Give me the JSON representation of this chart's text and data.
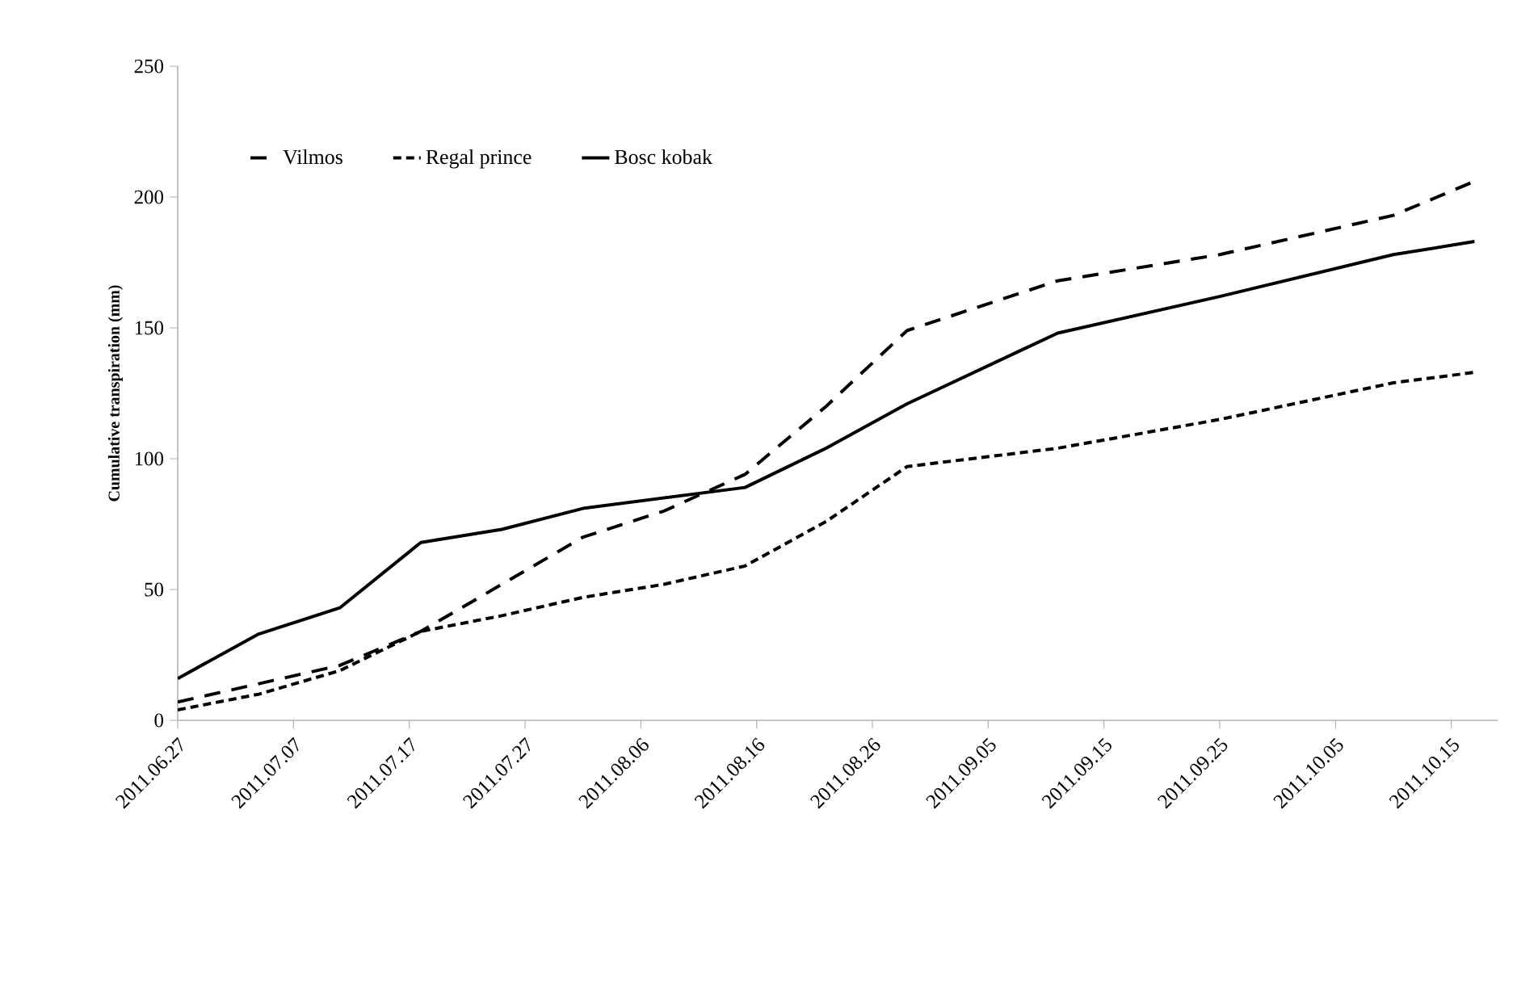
{
  "chart_data": {
    "type": "line",
    "ylabel": "Cumulative transpiration (mm)",
    "x": [
      "2011-06-27",
      "2011-07-04",
      "2011-07-11",
      "2011-07-18",
      "2011-07-25",
      "2011-08-01",
      "2011-08-08",
      "2011-08-15",
      "2011-08-22",
      "2011-08-29",
      "2011-09-11",
      "2011-09-25",
      "2011-10-10",
      "2011-10-17"
    ],
    "series": [
      {
        "name": "Vilmos",
        "color": "#000000",
        "line_style": "dashed",
        "values": [
          7,
          14,
          21,
          34,
          52,
          70,
          80,
          94,
          120,
          149,
          168,
          178,
          193,
          206
        ]
      },
      {
        "name": "Regal prince",
        "color": "#000000",
        "line_style": "dashed",
        "values": [
          4,
          10,
          19,
          34,
          40,
          47,
          52,
          59,
          76,
          97,
          104,
          115,
          129,
          133
        ]
      },
      {
        "name": "Bosc kobak",
        "color": "#000000",
        "line_style": "solid",
        "values": [
          16,
          33,
          43,
          68,
          73,
          81,
          85,
          89,
          104,
          121,
          148,
          162,
          178,
          183
        ]
      }
    ],
    "xlim": [
      "2011-06-27",
      "2011-10-19"
    ],
    "xticks": [
      {
        "value": "2011-06-27",
        "label": "2011.06.27"
      },
      {
        "value": "2011-07-07",
        "label": "2011.07.07"
      },
      {
        "value": "2011-07-17",
        "label": "2011.07.17"
      },
      {
        "value": "2011-07-27",
        "label": "2011.07.27"
      },
      {
        "value": "2011-08-06",
        "label": "2011.08.06"
      },
      {
        "value": "2011-08-16",
        "label": "2011.08.16"
      },
      {
        "value": "2011-08-26",
        "label": "2011.08.26"
      },
      {
        "value": "2011-09-05",
        "label": "2011.09.05"
      },
      {
        "value": "2011-09-15",
        "label": "2011.09.15"
      },
      {
        "value": "2011-09-25",
        "label": "2011.09.25"
      },
      {
        "value": "2011-10-05",
        "label": "2011.10.05"
      },
      {
        "value": "2011-10-15",
        "label": "2011.10.15"
      }
    ],
    "ylim": [
      0,
      250
    ],
    "yticks": [
      0,
      50,
      100,
      150,
      200,
      250
    ],
    "grid": false,
    "legend": "top left",
    "marker": "none"
  }
}
